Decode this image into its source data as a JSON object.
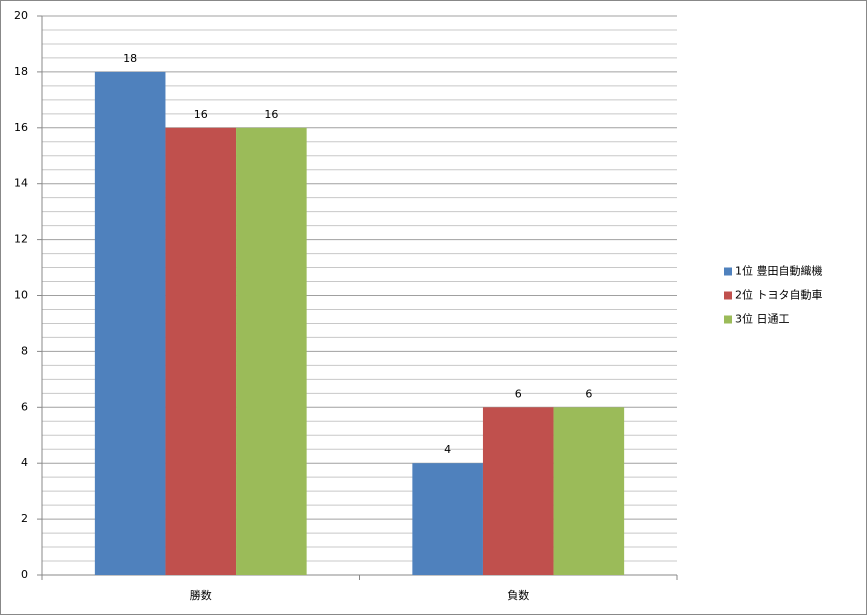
{
  "chart_data": {
    "type": "bar",
    "categories": [
      "勝数",
      "負数"
    ],
    "series": [
      {
        "name": "1位 豊田自動織機",
        "color": "#4f81bd",
        "values": [
          18,
          4
        ]
      },
      {
        "name": "2位 トヨタ自動車",
        "color": "#c0504d",
        "values": [
          16,
          6
        ]
      },
      {
        "name": "3位 日通工",
        "color": "#9bbb59",
        "values": [
          16,
          6
        ]
      }
    ],
    "ylim": [
      0,
      20
    ],
    "yticks": [
      0,
      2,
      4,
      6,
      8,
      10,
      12,
      14,
      16,
      18,
      20
    ],
    "minor_yticks": [
      0.5,
      1,
      1.5,
      2.5,
      3,
      3.5,
      4.5,
      5,
      5.5,
      6.5,
      7,
      7.5,
      8.5,
      9,
      9.5,
      10.5,
      11,
      11.5,
      12.5,
      13,
      13.5,
      14.5,
      15,
      15.5,
      16.5,
      17,
      17.5,
      18.5,
      19,
      19.5
    ],
    "grid": true,
    "legend": "right"
  }
}
